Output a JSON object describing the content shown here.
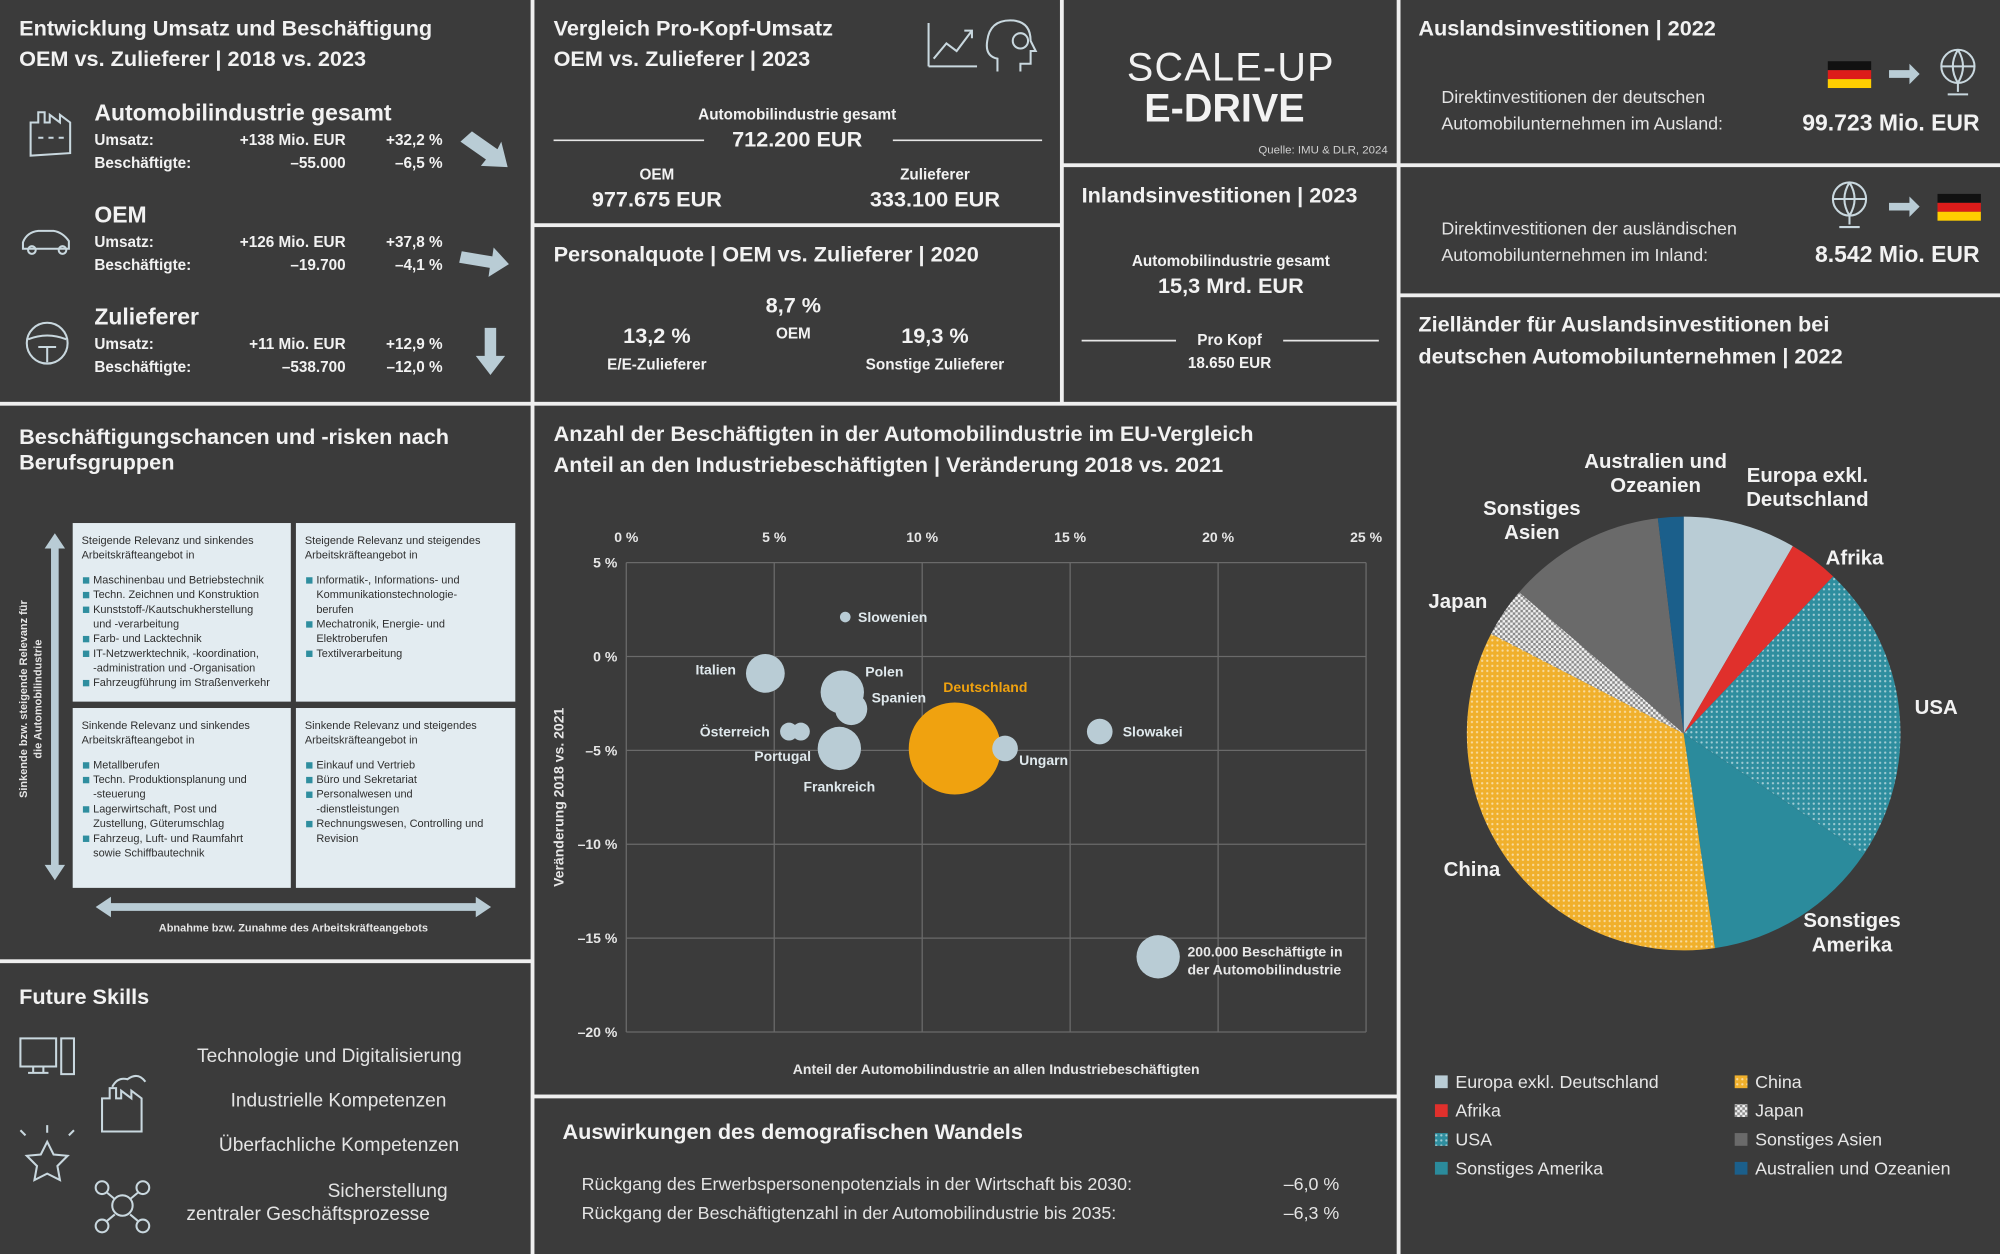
{
  "entwicklung": {
    "title": [
      "Entwicklung Umsatz und Beschäftigung",
      "OEM vs. Zulieferer | 2018 vs. 2023"
    ],
    "groups": [
      {
        "name": "Automobilindustrie gesamt",
        "rows": [
          [
            "Umsatz:",
            "+138 Mio. EUR",
            "+32,2 %"
          ],
          [
            "Beschäftigte:",
            "–55.000",
            "–6,5 %"
          ]
        ]
      },
      {
        "name": "OEM",
        "rows": [
          [
            "Umsatz:",
            "+126 Mio. EUR",
            "+37,8 %"
          ],
          [
            "Beschäftigte:",
            "–19.700",
            "–4,1 %"
          ]
        ]
      },
      {
        "name": "Zulieferer",
        "rows": [
          [
            "Umsatz:",
            "+11 Mio. EUR",
            "+12,9 %"
          ],
          [
            "Beschäftigte:",
            "–538.700",
            "–12,0 %"
          ]
        ]
      }
    ]
  },
  "pro_kopf": {
    "title": [
      "Vergleich Pro-Kopf-Umsatz",
      "OEM vs. Zulieferer | 2023"
    ],
    "total_label": "Automobilindustrie gesamt",
    "total": "712.200 EUR",
    "items": [
      {
        "label": "OEM",
        "value": "977.675 EUR"
      },
      {
        "label": "Zulieferer",
        "value": "333.100 EUR"
      }
    ]
  },
  "personalquote": {
    "title": "Personalquote | OEM vs. Zulieferer | 2020",
    "items": [
      {
        "value": "13,2 %",
        "label": "E/E-Zulieferer"
      },
      {
        "value": "8,7 %",
        "label": "OEM"
      },
      {
        "value": "19,3 %",
        "label": "Sonstige Zulieferer"
      }
    ]
  },
  "brand": {
    "line1": "SCALE-UP",
    "line2": "E-DRIVE",
    "source": "Quelle: IMU & DLR, 2024"
  },
  "inland": {
    "title": "Inlandsinvestitionen | 2023",
    "total_label": "Automobilindustrie gesamt",
    "total": "15,3 Mrd. EUR",
    "per_head_label": "Pro Kopf",
    "per_head": "18.650 EUR"
  },
  "ausland": {
    "title": "Auslandsinvestitionen | 2022",
    "items": [
      {
        "text": [
          "Direktinvestitionen der deutschen",
          "Automobilunternehmen im Ausland:"
        ],
        "value": "99.723 Mio. EUR"
      },
      {
        "text": [
          "Direktinvestitionen der ausländischen",
          "Automobilunternehmen im Inland:"
        ],
        "value": "8.542 Mio. EUR"
      }
    ]
  },
  "berufsgruppen": {
    "title": [
      "Beschäftigungschancen und -risken nach",
      "Berufsgruppen"
    ],
    "y_label": [
      "Sinkende bzw. steigende Relevanz für",
      "die Automobilindustrie"
    ],
    "x_label": "Abnahme bzw. Zunahme des Arbeitskräfteangebots",
    "quadrants": [
      {
        "heading": [
          "Steigende Relevanz und sinkendes",
          "Arbeitskräfteangebot in"
        ],
        "items": [
          [
            "Maschinenbau und Betriebstechnik"
          ],
          [
            "Techn. Zeichnen und Konstruktion"
          ],
          [
            "Kunststoff-/Kautschukherstellung",
            "und -verarbeitung"
          ],
          [
            "Farb- und Lacktechnik"
          ],
          [
            "IT-Netzwerktechnik, -koordination,",
            "-administration und -Organisation"
          ],
          [
            "Fahrzeugführung im Straßenverkehr"
          ]
        ]
      },
      {
        "heading": [
          "Steigende Relevanz und steigendes",
          "Arbeitskräfteangebot in"
        ],
        "items": [
          [
            "Informatik-, Informations- und",
            "Kommunikationstechnologie-",
            "berufen"
          ],
          [
            "Mechatronik, Energie- und",
            "Elektroberufen"
          ],
          [
            "Textilverarbeitung"
          ]
        ]
      },
      {
        "heading": [
          "Sinkende Relevanz und sinkendes",
          "Arbeitskräfteangebot in"
        ],
        "items": [
          [
            "Metallberufen"
          ],
          [
            "Techn. Produktionsplanung und",
            "-steuerung"
          ],
          [
            "Lagerwirtschaft, Post und",
            "Zustellung, Güterumschlag"
          ],
          [
            "Fahrzeug, Luft- und Raumfahrt",
            "sowie Schiffbautechnik"
          ]
        ]
      },
      {
        "heading": [
          "Sinkende Relevanz und steigendes",
          "Arbeitskräfteangebot in"
        ],
        "items": [
          [
            "Einkauf und Vertrieb"
          ],
          [
            "Büro und Sekretariat"
          ],
          [
            "Personalwesen und",
            "-dienstleistungen"
          ],
          [
            "Rechnungswesen, Controlling und",
            "Revision"
          ]
        ]
      }
    ]
  },
  "future_skills": {
    "title": "Future Skills",
    "items": [
      [
        "Technologie und Digitalisierung"
      ],
      [
        "Industrielle Kompetenzen"
      ],
      [
        "Überfachliche Kompetenzen"
      ],
      [
        "Sicherstellung",
        "zentraler Geschäftsprozesse"
      ]
    ]
  },
  "demografie": {
    "title": "Auswirkungen des demografischen Wandels",
    "rows": [
      [
        "Rückgang des Erwerbspersonenpotenzials in der Wirtschaft bis 2030:",
        "–6,0 %"
      ],
      [
        "Rückgang der Beschäftigtenzahl in der Automobilindustrie bis 2035:",
        "–6,3 %"
      ]
    ]
  },
  "chart_data": [
    {
      "type": "bubble",
      "title": [
        "Anzahl der Beschäftigten in der Automobilindustrie im EU-Vergleich",
        "Anteil an den Industriebeschäftigten | Veränderung 2018 vs. 2021"
      ],
      "x_label": "Anteil der Automobilindustrie an allen Industriebeschäftigten",
      "y_label": "Veränderung 2018 vs. 2021",
      "categories": [
        "Slowenien",
        "Italien",
        "Polen",
        "Spanien",
        "Österreich",
        "Portugal",
        "Frankreich",
        "Deutschland",
        "Ungarn",
        "Slowakei"
      ],
      "x": [
        7.4,
        4.7,
        7.3,
        7.6,
        5.5,
        5.9,
        7.2,
        11.1,
        12.8,
        16.0
      ],
      "values": [
        2.1,
        -0.9,
        -1.9,
        -2.8,
        -4.0,
        -4.0,
        -4.9,
        -4.9,
        -4.9,
        -4.0
      ],
      "sizes": [
        12000,
        160000,
        200000,
        110000,
        34000,
        34000,
        200000,
        900000,
        70000,
        70000
      ],
      "colors": [
        "#b9ccd5",
        "#b9ccd5",
        "#b9ccd5",
        "#b9ccd5",
        "#b9ccd5",
        "#b9ccd5",
        "#b9ccd5",
        "#f0a20f",
        "#b9ccd5",
        "#b9ccd5"
      ],
      "xlim": [
        0,
        25
      ],
      "xticks": [
        {
          "value": 0,
          "label": "0 %"
        },
        {
          "value": 5,
          "label": "5 %"
        },
        {
          "value": 10,
          "label": "10 %"
        },
        {
          "value": 15,
          "label": "15 %"
        },
        {
          "value": 20,
          "label": "20 %"
        },
        {
          "value": 25,
          "label": "25 %"
        }
      ],
      "ylim": [
        -20,
        5
      ],
      "yticks": [
        {
          "value": 5,
          "label": "5 %"
        },
        {
          "value": 0,
          "label": "0 %"
        },
        {
          "value": -5,
          "label": "–5 %"
        },
        {
          "value": -10,
          "label": "–10 %"
        },
        {
          "value": -15,
          "label": "–15 %"
        },
        {
          "value": -20,
          "label": "–20 %"
        }
      ],
      "grid": true,
      "size_legend": {
        "value": 200000,
        "label": [
          "200.000 Beschäftigte in",
          "der Automobilindustrie"
        ]
      }
    },
    {
      "type": "pie",
      "title": [
        "Zielländer für Auslandsinvestitionen bei",
        "deutschen Automobilunternehmen | 2022"
      ],
      "categories": [
        "Europa exkl. Deutschland",
        "Afrika",
        "USA",
        "Sonstiges Amerika",
        "China",
        "Japan",
        "Sonstiges Asien",
        "Australien und Ozeanien"
      ],
      "labels": [
        [
          "Europa exkl.",
          "Deutschland"
        ],
        [
          "Afrika"
        ],
        [
          "USA"
        ],
        [
          "Sonstiges",
          "Amerika"
        ],
        [
          "China"
        ],
        [
          "Japan"
        ],
        [
          "Sonstiges",
          "Asien"
        ],
        [
          "Australien und",
          "Ozeanien"
        ]
      ],
      "values": [
        8.4,
        3.7,
        22.3,
        13.3,
        34.9,
        3.7,
        11.8,
        1.9
      ],
      "colors": [
        "#b9ccd5",
        "#e0302c",
        "#2f8e9f",
        "#2b8b9c",
        "#f0b02c",
        "#8a8a8a",
        "#6a6a6a",
        "#1b5f8b"
      ],
      "patterns": [
        "solid",
        "solid",
        "dots",
        "solid",
        "dots",
        "checker",
        "solid",
        "solid"
      ]
    }
  ]
}
